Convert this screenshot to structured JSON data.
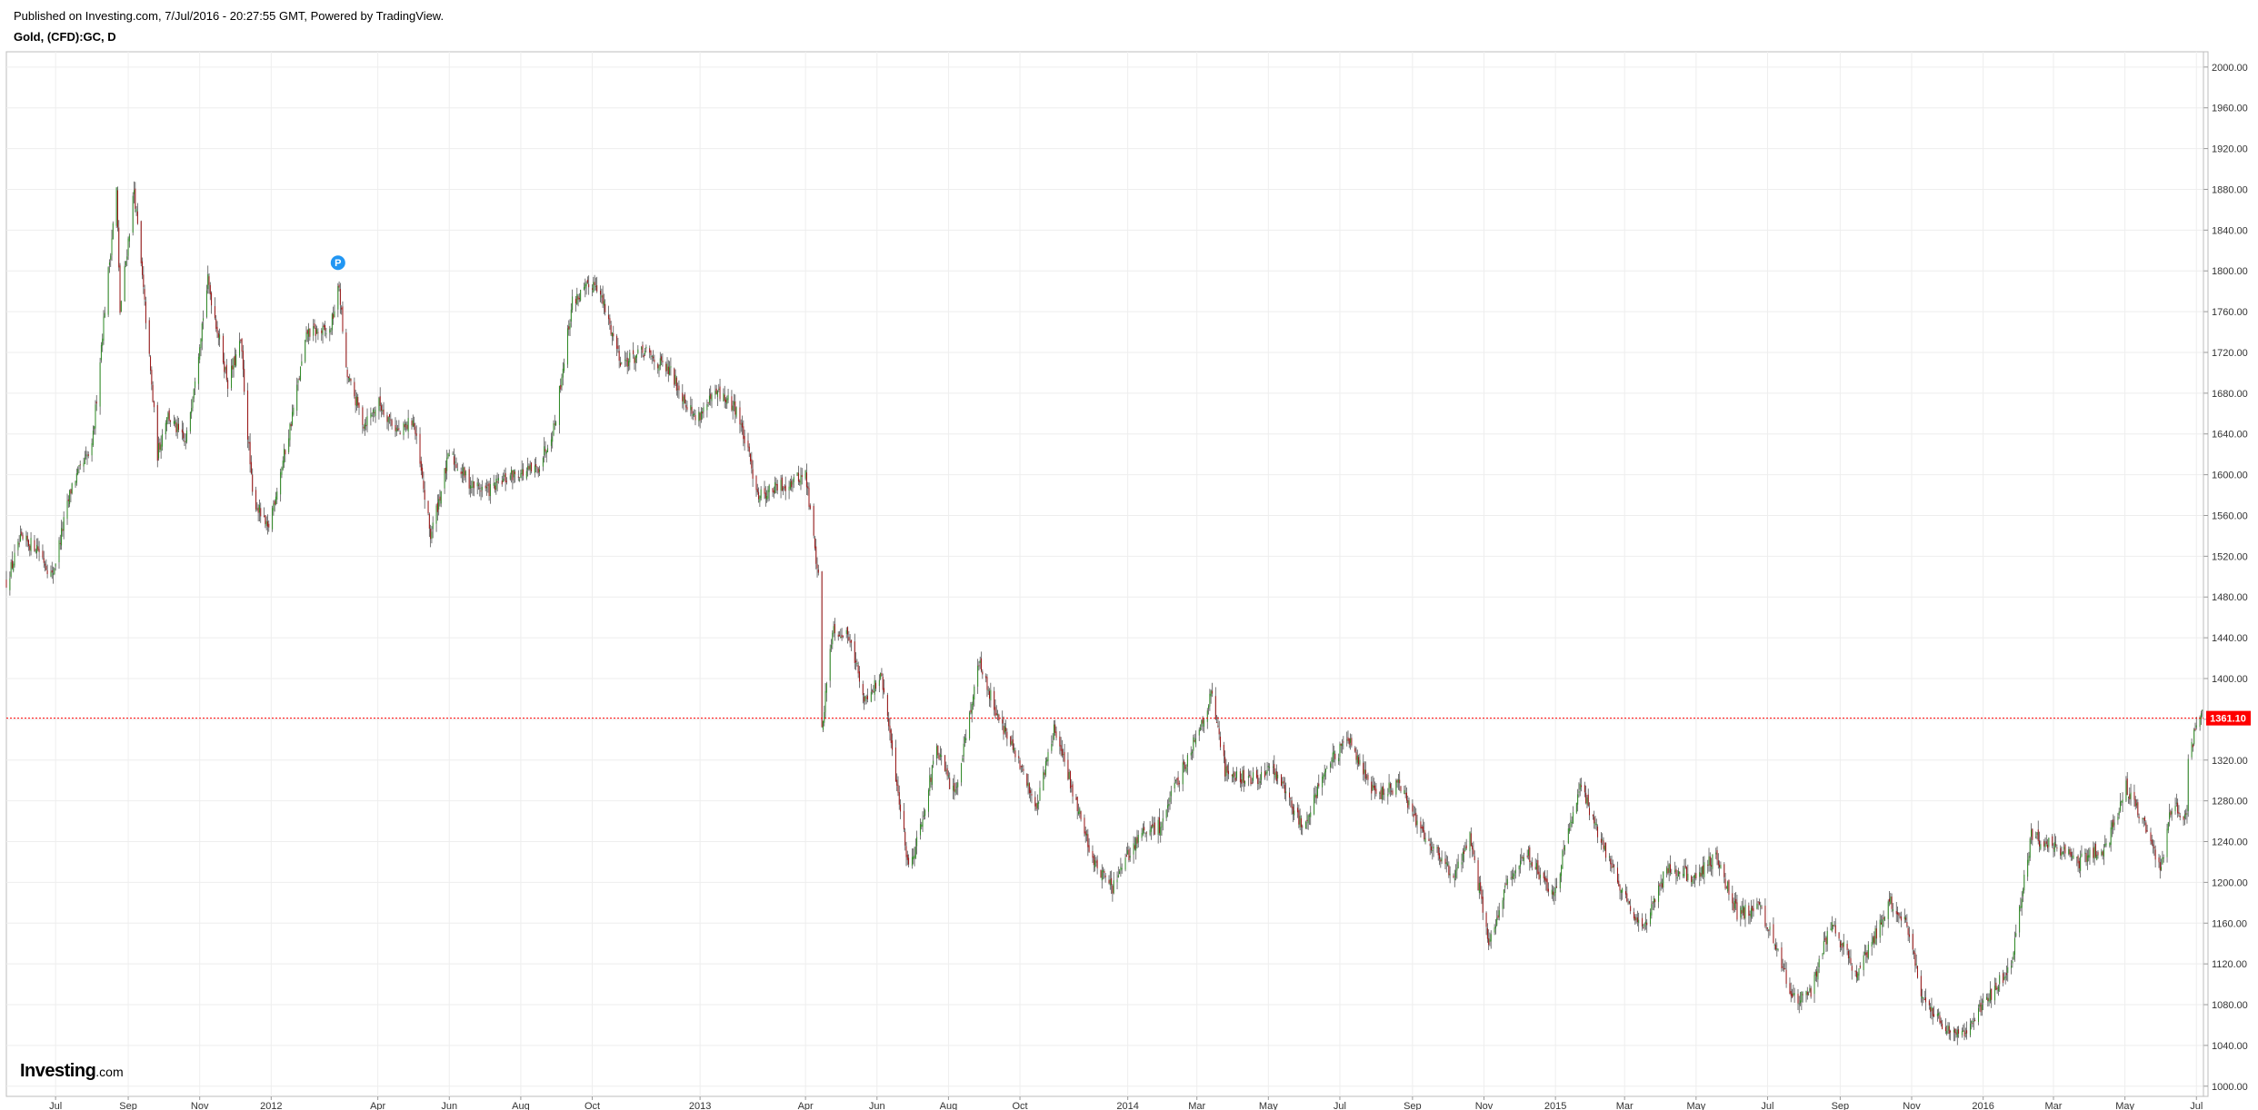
{
  "header": {
    "published": "Published on Investing.com, 7/Jul/2016 - 20:27:55 GMT, Powered by TradingView.",
    "symbol": "Gold, (CFD):GC, D"
  },
  "logo": {
    "main": "Investing",
    "suffix": ".com"
  },
  "marker": {
    "label": "P"
  },
  "colors": {
    "up": "#2e8b24",
    "down": "#9b1414",
    "wick": "#555555",
    "grid": "#eeeeee",
    "last_price": "#ff0000",
    "marker": "#2196f3"
  },
  "chart_data": {
    "type": "candlestick",
    "interval": "daily",
    "x_start": "2011-05-20",
    "x_end": "2016-07-07",
    "ylim": [
      990,
      2015
    ],
    "y_ticks": [
      "2000.00",
      "1960.00",
      "1920.00",
      "1880.00",
      "1840.00",
      "1800.00",
      "1760.00",
      "1720.00",
      "1680.00",
      "1640.00",
      "1600.00",
      "1560.00",
      "1520.00",
      "1480.00",
      "1440.00",
      "1400.00",
      "1360.00",
      "1320.00",
      "1280.00",
      "1240.00",
      "1200.00",
      "1160.00",
      "1120.00",
      "1080.00",
      "1040.00",
      "1000.00"
    ],
    "x_ticks": [
      {
        "label": "Jul",
        "date": "2011-07-01"
      },
      {
        "label": "Sep",
        "date": "2011-09-01"
      },
      {
        "label": "Nov",
        "date": "2011-11-01"
      },
      {
        "label": "2012",
        "date": "2012-01-01"
      },
      {
        "label": "Apr",
        "date": "2012-04-01"
      },
      {
        "label": "Jun",
        "date": "2012-06-01"
      },
      {
        "label": "Aug",
        "date": "2012-08-01"
      },
      {
        "label": "Oct",
        "date": "2012-10-01"
      },
      {
        "label": "2013",
        "date": "2013-01-01"
      },
      {
        "label": "Apr",
        "date": "2013-04-01"
      },
      {
        "label": "Jun",
        "date": "2013-06-01"
      },
      {
        "label": "Aug",
        "date": "2013-08-01"
      },
      {
        "label": "Oct",
        "date": "2013-10-01"
      },
      {
        "label": "2014",
        "date": "2014-01-01"
      },
      {
        "label": "Mar",
        "date": "2014-03-01"
      },
      {
        "label": "May",
        "date": "2014-05-01"
      },
      {
        "label": "Jul",
        "date": "2014-07-01"
      },
      {
        "label": "Sep",
        "date": "2014-09-01"
      },
      {
        "label": "Nov",
        "date": "2014-11-01"
      },
      {
        "label": "2015",
        "date": "2015-01-01"
      },
      {
        "label": "Mar",
        "date": "2015-03-01"
      },
      {
        "label": "May",
        "date": "2015-05-01"
      },
      {
        "label": "Jul",
        "date": "2015-07-01"
      },
      {
        "label": "Sep",
        "date": "2015-09-01"
      },
      {
        "label": "Nov",
        "date": "2015-11-01"
      },
      {
        "label": "2016",
        "date": "2016-01-01"
      },
      {
        "label": "Mar",
        "date": "2016-03-01"
      },
      {
        "label": "May",
        "date": "2016-05-01"
      },
      {
        "label": "Jul",
        "date": "2016-07-01"
      }
    ],
    "last_price": 1361.1,
    "last_price_label": "1361.10",
    "close_path": [
      [
        "2011-05-20",
        1495
      ],
      [
        "2011-06-01",
        1535
      ],
      [
        "2011-06-15",
        1530
      ],
      [
        "2011-06-28",
        1500
      ],
      [
        "2011-07-15",
        1590
      ],
      [
        "2011-08-01",
        1625
      ],
      [
        "2011-08-10",
        1740
      ],
      [
        "2011-08-22",
        1880
      ],
      [
        "2011-08-25",
        1760
      ],
      [
        "2011-09-06",
        1880
      ],
      [
        "2011-09-14",
        1780
      ],
      [
        "2011-09-26",
        1620
      ],
      [
        "2011-10-04",
        1660
      ],
      [
        "2011-10-20",
        1630
      ],
      [
        "2011-11-08",
        1790
      ],
      [
        "2011-11-25",
        1690
      ],
      [
        "2011-12-06",
        1730
      ],
      [
        "2011-12-16",
        1580
      ],
      [
        "2011-12-29",
        1545
      ],
      [
        "2012-01-16",
        1640
      ],
      [
        "2012-02-01",
        1740
      ],
      [
        "2012-02-20",
        1740
      ],
      [
        "2012-02-28",
        1785
      ],
      [
        "2012-03-05",
        1700
      ],
      [
        "2012-03-20",
        1650
      ],
      [
        "2012-04-02",
        1670
      ],
      [
        "2012-04-20",
        1640
      ],
      [
        "2012-05-01",
        1655
      ],
      [
        "2012-05-16",
        1540
      ],
      [
        "2012-06-01",
        1620
      ],
      [
        "2012-06-20",
        1590
      ],
      [
        "2012-07-05",
        1585
      ],
      [
        "2012-07-25",
        1600
      ],
      [
        "2012-08-15",
        1605
      ],
      [
        "2012-08-30",
        1650
      ],
      [
        "2012-09-14",
        1770
      ],
      [
        "2012-10-04",
        1790
      ],
      [
        "2012-10-26",
        1710
      ],
      [
        "2012-11-15",
        1720
      ],
      [
        "2012-12-07",
        1700
      ],
      [
        "2012-12-28",
        1655
      ],
      [
        "2013-01-16",
        1680
      ],
      [
        "2013-02-01",
        1665
      ],
      [
        "2013-02-20",
        1580
      ],
      [
        "2013-03-14",
        1590
      ],
      [
        "2013-04-01",
        1600
      ],
      [
        "2013-04-12",
        1500
      ],
      [
        "2013-04-15",
        1350
      ],
      [
        "2013-04-24",
        1450
      ],
      [
        "2013-05-10",
        1440
      ],
      [
        "2013-05-20",
        1380
      ],
      [
        "2013-06-05",
        1400
      ],
      [
        "2013-06-20",
        1280
      ],
      [
        "2013-06-28",
        1215
      ],
      [
        "2013-07-05",
        1240
      ],
      [
        "2013-07-22",
        1330
      ],
      [
        "2013-08-06",
        1285
      ],
      [
        "2013-08-27",
        1415
      ],
      [
        "2013-09-10",
        1370
      ],
      [
        "2013-09-25",
        1330
      ],
      [
        "2013-10-15",
        1275
      ],
      [
        "2013-10-30",
        1350
      ],
      [
        "2013-11-15",
        1290
      ],
      [
        "2013-12-03",
        1220
      ],
      [
        "2013-12-19",
        1195
      ],
      [
        "2014-01-10",
        1245
      ],
      [
        "2014-01-28",
        1255
      ],
      [
        "2014-02-20",
        1320
      ],
      [
        "2014-03-14",
        1385
      ],
      [
        "2014-03-25",
        1310
      ],
      [
        "2014-04-15",
        1300
      ],
      [
        "2014-05-06",
        1310
      ],
      [
        "2014-05-30",
        1255
      ],
      [
        "2014-06-20",
        1315
      ],
      [
        "2014-07-10",
        1340
      ],
      [
        "2014-07-31",
        1285
      ],
      [
        "2014-08-20",
        1295
      ],
      [
        "2014-09-10",
        1250
      ],
      [
        "2014-10-06",
        1205
      ],
      [
        "2014-10-20",
        1245
      ],
      [
        "2014-11-05",
        1140
      ],
      [
        "2014-11-20",
        1195
      ],
      [
        "2014-12-08",
        1230
      ],
      [
        "2014-12-30",
        1185
      ],
      [
        "2015-01-22",
        1300
      ],
      [
        "2015-02-10",
        1235
      ],
      [
        "2015-03-17",
        1150
      ],
      [
        "2015-04-06",
        1215
      ],
      [
        "2015-04-28",
        1205
      ],
      [
        "2015-05-18",
        1225
      ],
      [
        "2015-06-05",
        1170
      ],
      [
        "2015-06-25",
        1175
      ],
      [
        "2015-07-24",
        1085
      ],
      [
        "2015-08-06",
        1090
      ],
      [
        "2015-08-24",
        1160
      ],
      [
        "2015-09-15",
        1110
      ],
      [
        "2015-10-14",
        1180
      ],
      [
        "2015-10-28",
        1160
      ],
      [
        "2015-11-10",
        1085
      ],
      [
        "2015-12-02",
        1055
      ],
      [
        "2015-12-17",
        1055
      ],
      [
        "2016-01-05",
        1085
      ],
      [
        "2016-01-25",
        1120
      ],
      [
        "2016-02-11",
        1245
      ],
      [
        "2016-03-01",
        1235
      ],
      [
        "2016-03-22",
        1220
      ],
      [
        "2016-04-15",
        1235
      ],
      [
        "2016-05-02",
        1295
      ],
      [
        "2016-05-20",
        1250
      ],
      [
        "2016-05-31",
        1210
      ],
      [
        "2016-06-10",
        1275
      ],
      [
        "2016-06-23",
        1265
      ],
      [
        "2016-06-24",
        1325
      ],
      [
        "2016-07-05",
        1365
      ],
      [
        "2016-07-07",
        1361
      ]
    ]
  }
}
